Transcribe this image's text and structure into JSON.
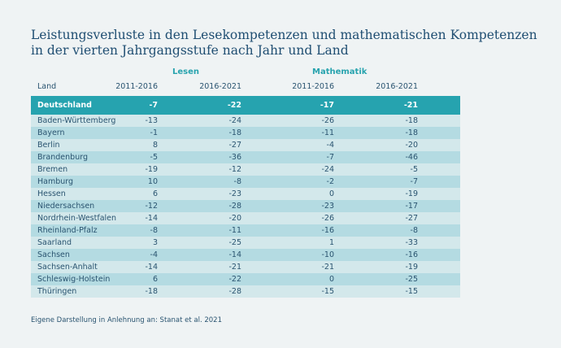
{
  "title": [
    "Leistungsverluste in den Lesekompetenzen und mathematischen Kompetenzen",
    "in der vierten Jahrgangsstufe nach Jahr und Land"
  ],
  "groups": {
    "lesen": "Lesen",
    "mathematik": "Mathematik"
  },
  "columns": [
    "Land",
    "2011-2016",
    "2016-2021",
    "2011-2016",
    "2016-2021"
  ],
  "colors": {
    "header": "#26a3af",
    "row_light": "#d3e8eb",
    "row_dark": "#b4dbe2",
    "background": "#eff3f4"
  },
  "total": {
    "land": "Deutschland",
    "values": [
      "-7",
      "-22",
      "-17",
      "-21"
    ]
  },
  "rows": [
    {
      "land": "Baden-Württemberg",
      "values": [
        "-13",
        "-24",
        "-26",
        "-18"
      ]
    },
    {
      "land": "Bayern",
      "values": [
        "-1",
        "-18",
        "-11",
        "-18"
      ]
    },
    {
      "land": "Berlin",
      "values": [
        "8",
        "-27",
        "-4",
        "-20"
      ]
    },
    {
      "land": "Brandenburg",
      "values": [
        "-5",
        "-36",
        "-7",
        "-46"
      ]
    },
    {
      "land": "Bremen",
      "values": [
        "-19",
        "-12",
        "-24",
        "-5"
      ]
    },
    {
      "land": "Hamburg",
      "values": [
        "10",
        "-8",
        "-2",
        "-7"
      ]
    },
    {
      "land": "Hessen",
      "values": [
        "6",
        "-23",
        "0",
        "-19"
      ]
    },
    {
      "land": "Niedersachsen",
      "values": [
        "-12",
        "-28",
        "-23",
        "-17"
      ]
    },
    {
      "land": "Nordrhein-Westfalen",
      "values": [
        "-14",
        "-20",
        "-26",
        "-27"
      ]
    },
    {
      "land": "Rheinland-Pfalz",
      "values": [
        "-8",
        "-11",
        "-16",
        "-8"
      ]
    },
    {
      "land": "Saarland",
      "values": [
        "3",
        "-25",
        "1",
        "-33"
      ]
    },
    {
      "land": "Sachsen",
      "values": [
        "-4",
        "-14",
        "-10",
        "-16"
      ]
    },
    {
      "land": "Sachsen-Anhalt",
      "values": [
        "-14",
        "-21",
        "-21",
        "-19"
      ]
    },
    {
      "land": "Schleswig-Holstein",
      "values": [
        "6",
        "-22",
        "0",
        "-25"
      ]
    },
    {
      "land": "Thüringen",
      "values": [
        "-18",
        "-28",
        "-15",
        "-15"
      ]
    }
  ],
  "source": "Eigene Darstellung in Anlehnung an: Stanat et al. 2021"
}
